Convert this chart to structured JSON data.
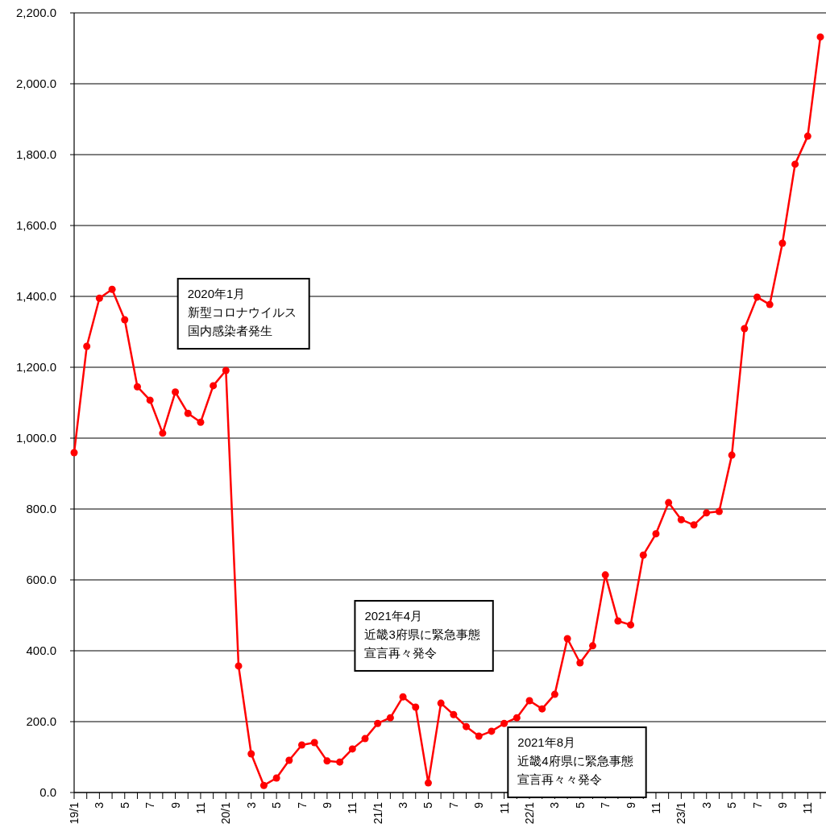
{
  "chart_data": {
    "type": "line",
    "categories": [
      "19/1",
      null,
      "3",
      null,
      "5",
      null,
      "7",
      null,
      "9",
      null,
      "11",
      null,
      "20/1",
      null,
      "3",
      null,
      "5",
      null,
      "7",
      null,
      "9",
      null,
      "11",
      null,
      "21/1",
      null,
      "3",
      null,
      "5",
      null,
      "7",
      null,
      "9",
      null,
      "11",
      null,
      "22/1",
      null,
      "3",
      null,
      "5",
      null,
      "7",
      null,
      "9",
      null,
      "11",
      null,
      "23/1",
      null,
      "3",
      null,
      "5",
      null,
      "7",
      null,
      "9",
      null,
      "11",
      null
    ],
    "series": [
      {
        "color": "#ff0000",
        "values": [
          959,
          1259,
          1395,
          1420,
          1334,
          1145,
          1107,
          1014,
          1130,
          1070,
          1045,
          1148,
          1191,
          357,
          109,
          20,
          41,
          91,
          134,
          141,
          89,
          86,
          123,
          152,
          195,
          211,
          270,
          241,
          27,
          252,
          220,
          186,
          159,
          173,
          195,
          211,
          259,
          236,
          277,
          434,
          366,
          414,
          614,
          484,
          473,
          670,
          730,
          818,
          770,
          755,
          789,
          793,
          952,
          1309,
          1398,
          1377,
          1550,
          1773,
          1852,
          2132
        ]
      }
    ],
    "ylim": [
      0,
      2200
    ],
    "yticks": [
      {
        "value": 0,
        "label": "0.0"
      },
      {
        "value": 200,
        "label": "200.0"
      },
      {
        "value": 400,
        "label": "400.0"
      },
      {
        "value": 600,
        "label": "600.0"
      },
      {
        "value": 800,
        "label": "800.0"
      },
      {
        "value": 1000,
        "label": "1,000.0"
      },
      {
        "value": 1200,
        "label": "1,200.0"
      },
      {
        "value": 1400,
        "label": "1,400.0"
      },
      {
        "value": 1600,
        "label": "1,600.0"
      },
      {
        "value": 1800,
        "label": "1,800.0"
      },
      {
        "value": 2000,
        "label": "2,000.0"
      },
      {
        "value": 2200,
        "label": "2,200.0"
      }
    ],
    "grid": "y",
    "marker": "circle",
    "line_style": "solid",
    "annotations": [
      "2020年1月",
      "新型コロナウイルス",
      "国内感染者発生",
      "2021年4月",
      "近畿3府県に緊急事態",
      "宣言再々発令",
      "2021年8月",
      "近畿4府県に緊急事態",
      "宣言再々々発令"
    ]
  }
}
